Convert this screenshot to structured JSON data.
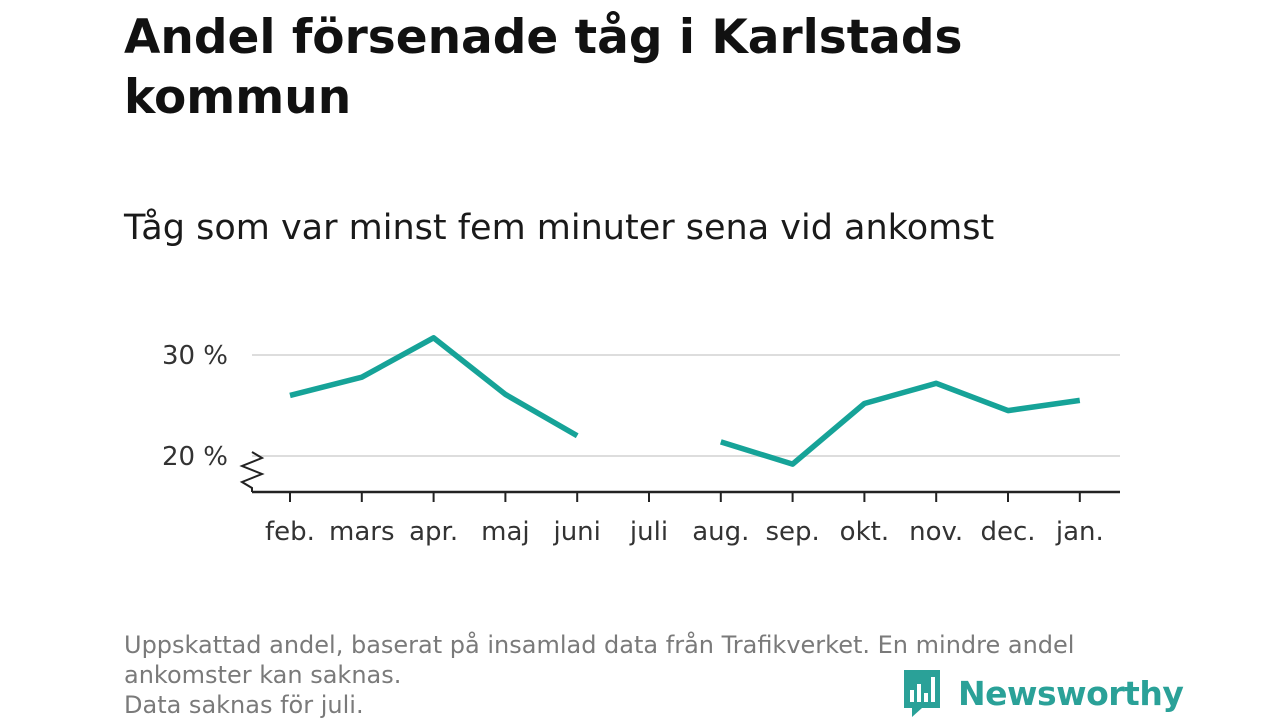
{
  "title": "Andel försenade tåg i Karlstads kommun",
  "subtitle": "Tåg som var minst fem minuter sena vid ankomst",
  "colors": {
    "line": "#16a398",
    "grid": "#dddddd",
    "axis": "#222222",
    "brand": "#2aa198",
    "footnote": "#7a7a7a"
  },
  "chart_data": {
    "type": "line",
    "title": "Andel försenade tåg i Karlstads kommun",
    "subtitle": "Tåg som var minst fem minuter sena vid ankomst",
    "categories": [
      "feb.",
      "mars",
      "apr.",
      "maj",
      "juni",
      "juli",
      "aug.",
      "sep.",
      "okt.",
      "nov.",
      "dec.",
      "jan."
    ],
    "series": [
      {
        "values": [
          26.0,
          27.8,
          31.7,
          26.1,
          22.0,
          null,
          21.4,
          19.2,
          25.2,
          27.2,
          24.5,
          25.5
        ]
      }
    ],
    "y_ticks": [
      {
        "value": 20,
        "label": "20 %"
      },
      {
        "value": 30,
        "label": "30 %"
      }
    ],
    "ylim": [
      17,
      32.5
    ],
    "y_axis_break": true,
    "grid": true,
    "xlabel": "",
    "ylabel": ""
  },
  "footnote": {
    "line1": "Uppskattad andel, baserat på insamlad data från Trafikverket. En mindre andel",
    "line2": "ankomster kan saknas.",
    "line3": "Data saknas för juli."
  },
  "brand": {
    "name": "Newsworthy",
    "icon": "newsworthy-logo-icon"
  }
}
